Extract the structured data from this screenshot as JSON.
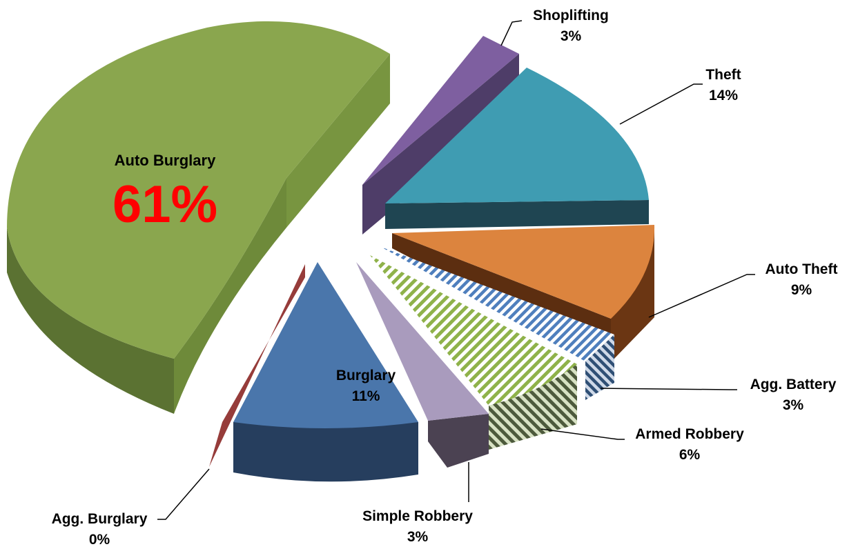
{
  "chart_data": {
    "type": "pie",
    "variant": "3d-exploded",
    "title": "",
    "slices": [
      {
        "label": "Auto Burglary",
        "percent_label": "61%",
        "value": 61,
        "color": "#8aa64e",
        "pattern": "none"
      },
      {
        "label": "Shoplifting",
        "percent_label": "3%",
        "value": 3,
        "color": "#7e5fa0",
        "pattern": "none"
      },
      {
        "label": "Theft",
        "percent_label": "14%",
        "value": 14,
        "color": "#3f9cb2",
        "pattern": "none"
      },
      {
        "label": "Auto Theft",
        "percent_label": "9%",
        "value": 9,
        "color": "#dc843e",
        "pattern": "none"
      },
      {
        "label": "Agg. Battery",
        "percent_label": "3%",
        "value": 3,
        "color": "#4f7fbd",
        "pattern": "stripes"
      },
      {
        "label": "Armed Robbery",
        "percent_label": "6%",
        "value": 6,
        "color": "#9bbb59",
        "pattern": "stripes"
      },
      {
        "label": "Simple Robbery",
        "percent_label": "3%",
        "value": 3,
        "color": "#a99bbd",
        "pattern": "none"
      },
      {
        "label": "Burglary",
        "percent_label": "11%",
        "value": 11,
        "color": "#4a76ab",
        "pattern": "none"
      },
      {
        "label": "Agg. Burglary",
        "percent_label": "0%",
        "value": 0,
        "color": "#963c3a",
        "pattern": "none"
      }
    ]
  }
}
